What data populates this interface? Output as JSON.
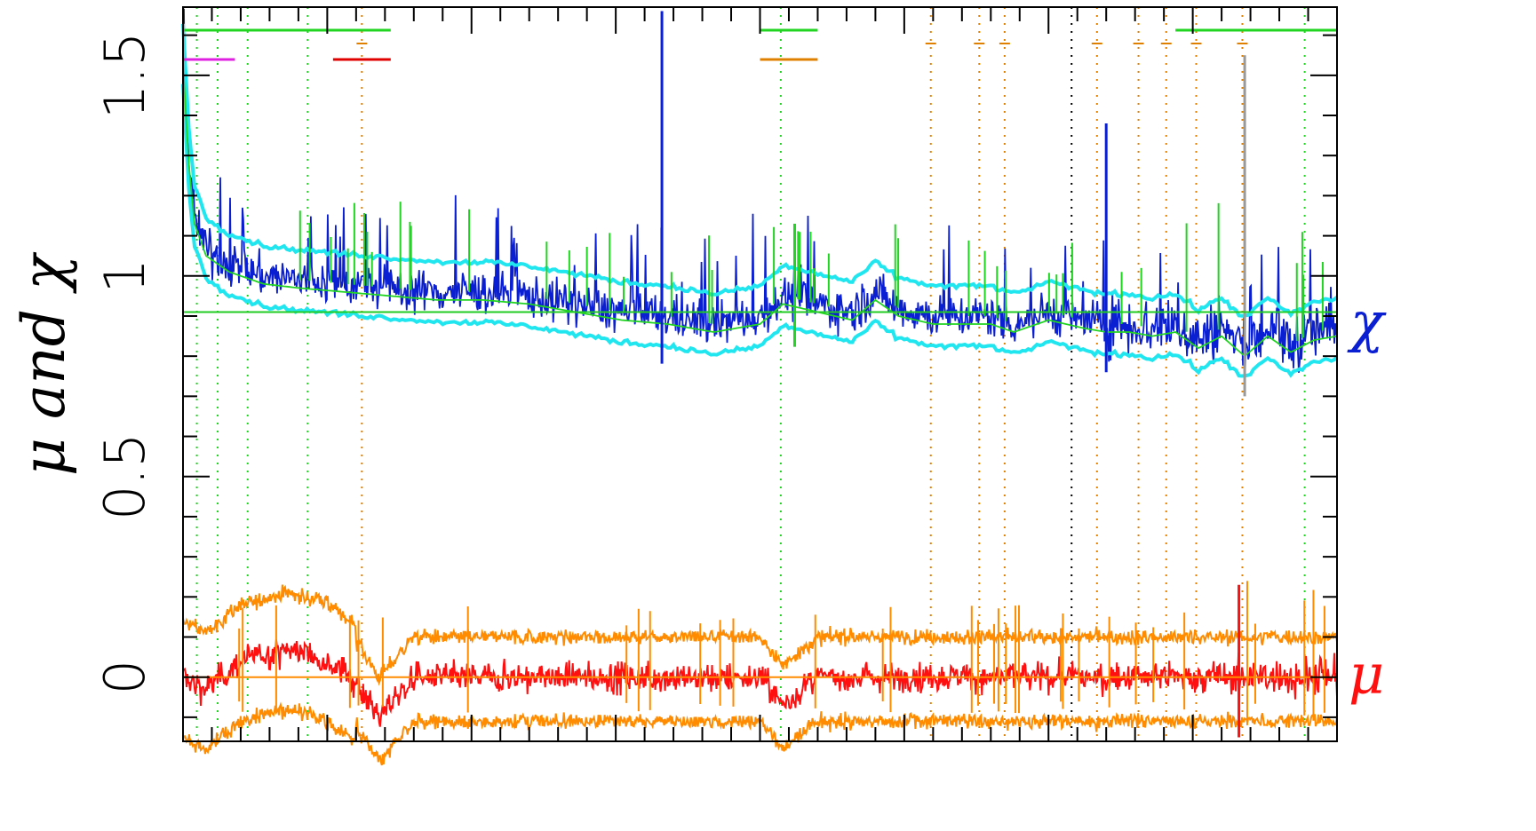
{
  "chart_data": {
    "type": "line",
    "title": "",
    "xlabel": "",
    "ylabel": "μ and χ",
    "ylim": [
      -0.16,
      1.67
    ],
    "xlim": [
      0,
      1
    ],
    "yticks": [
      0,
      0.5,
      1,
      1.5
    ],
    "ytick_labels": [
      "0",
      "0.5",
      "1",
      "1.5"
    ],
    "grid": false,
    "colors": {
      "chi": "#0a1ed2",
      "chi_envelope": "#20e6f0",
      "chi_fit": "#22d422",
      "mu": "#ff1010",
      "mu_envelope": "#ff8c00",
      "reference_line": "#22cc22",
      "marker_green": "#22d422",
      "marker_orange": "#e08000",
      "marker_magenta": "#e020e0",
      "marker_red": "#e00000",
      "marker_black": "#000000"
    },
    "reference_lines": {
      "chi": 0.91,
      "mu": 0.0
    },
    "series_labels": {
      "chi": "χ",
      "mu": "μ"
    },
    "series": [
      {
        "key": "chi",
        "x": [
          0,
          0.005,
          0.01,
          0.02,
          0.04,
          0.07,
          0.1,
          0.14,
          0.18,
          0.22,
          0.26,
          0.3,
          0.34,
          0.38,
          0.42,
          0.46,
          0.5,
          0.52,
          0.55,
          0.58,
          0.6,
          0.62,
          0.65,
          0.68,
          0.7,
          0.72,
          0.75,
          0.78,
          0.8,
          0.82,
          0.84,
          0.86,
          0.88,
          0.9,
          0.92,
          0.94,
          0.96,
          0.98,
          1.0
        ],
        "values": [
          1.55,
          1.3,
          1.15,
          1.07,
          1.03,
          1.0,
          0.99,
          0.98,
          0.97,
          0.96,
          0.96,
          0.95,
          0.93,
          0.91,
          0.9,
          0.88,
          0.9,
          0.95,
          0.93,
          0.91,
          0.96,
          0.92,
          0.9,
          0.9,
          0.9,
          0.88,
          0.91,
          0.89,
          0.88,
          0.88,
          0.87,
          0.88,
          0.84,
          0.87,
          0.82,
          0.87,
          0.83,
          0.86,
          0.87
        ]
      },
      {
        "key": "mu",
        "x": [
          0,
          0.02,
          0.05,
          0.09,
          0.12,
          0.15,
          0.17,
          0.2,
          0.25,
          0.3,
          0.35,
          0.4,
          0.45,
          0.5,
          0.52,
          0.55,
          0.6,
          0.7,
          0.8,
          0.9,
          1.0
        ],
        "values": [
          0.0,
          -0.03,
          0.04,
          0.07,
          0.05,
          -0.01,
          -0.1,
          0.0,
          0.0,
          0.0,
          0.0,
          0.0,
          0.0,
          0.0,
          -0.07,
          0.0,
          0.0,
          0.0,
          0.0,
          0.0,
          0.0
        ]
      }
    ],
    "annotations": {
      "spikes": [
        {
          "x": 0.415,
          "y": 1.66,
          "color": "chi"
        },
        {
          "x": 0.53,
          "y": 1.13,
          "color": "chi_fit"
        },
        {
          "x": 0.8,
          "y": 1.38,
          "color": "chi"
        },
        {
          "x": 0.92,
          "y": 1.55,
          "color": "gray"
        },
        {
          "x": 0.915,
          "y": 0.23,
          "color": "mu"
        }
      ],
      "vertical_markers": [
        {
          "x": 0.012,
          "color": "marker_green"
        },
        {
          "x": 0.03,
          "color": "marker_green"
        },
        {
          "x": 0.056,
          "color": "marker_green"
        },
        {
          "x": 0.108,
          "color": "marker_green"
        },
        {
          "x": 0.155,
          "color": "marker_orange"
        },
        {
          "x": 0.518,
          "color": "marker_green"
        },
        {
          "x": 0.648,
          "color": "marker_orange"
        },
        {
          "x": 0.69,
          "color": "marker_orange"
        },
        {
          "x": 0.712,
          "color": "marker_orange"
        },
        {
          "x": 0.77,
          "color": "marker_black"
        },
        {
          "x": 0.792,
          "color": "marker_orange"
        },
        {
          "x": 0.828,
          "color": "marker_orange"
        },
        {
          "x": 0.852,
          "color": "marker_orange"
        },
        {
          "x": 0.878,
          "color": "marker_orange"
        },
        {
          "x": 0.918,
          "color": "marker_orange"
        },
        {
          "x": 0.972,
          "color": "marker_green"
        }
      ],
      "top_segments": [
        {
          "x0": 0.0,
          "x1": 0.18,
          "row": 1,
          "color": "marker_green"
        },
        {
          "x0": 0.5,
          "x1": 0.55,
          "row": 1,
          "color": "marker_green"
        },
        {
          "x0": 0.86,
          "x1": 1.0,
          "row": 1,
          "color": "marker_green"
        },
        {
          "x0": 0.0,
          "x1": 0.045,
          "row": 2,
          "color": "marker_magenta"
        },
        {
          "x0": 0.13,
          "x1": 0.18,
          "row": 2,
          "color": "marker_red"
        },
        {
          "x0": 0.5,
          "x1": 0.55,
          "row": 2,
          "color": "marker_orange"
        }
      ]
    }
  }
}
